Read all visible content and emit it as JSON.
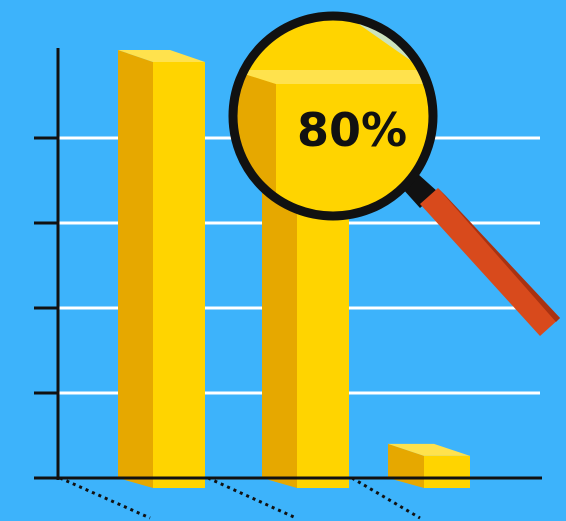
{
  "colors": {
    "background": "#3db3fb",
    "gridline": "#ffffff",
    "axis": "#111111",
    "bar_front": "#ffd400",
    "bar_side": "#e6a800",
    "bar_top": "#ffe24d",
    "lens_fill": "#ffd400",
    "lens_ring": "#111111",
    "handle": "#d84a1c",
    "handle_dark": "#a83212"
  },
  "magnifier": {
    "label": "80%",
    "icon": "magnifying-glass-icon"
  },
  "chart_data": {
    "type": "bar",
    "categories": [
      "",
      "",
      ""
    ],
    "values": [
      100,
      80,
      8
    ],
    "ylim": [
      0,
      100
    ],
    "grid": true,
    "style": "3d-bars"
  }
}
